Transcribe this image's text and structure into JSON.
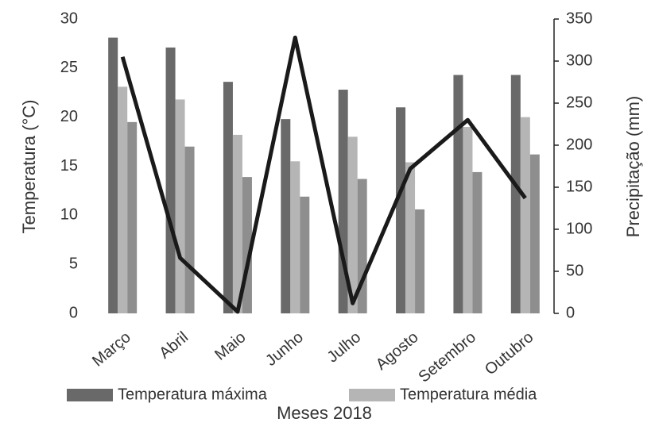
{
  "chart_data": {
    "type": "bar",
    "x_label": "Meses 2018",
    "y_label": "Temperatura (°C)",
    "y2_label": "Precipitação (mm)",
    "categories": [
      "Março",
      "Abril",
      "Maio",
      "Junho",
      "Julho",
      "Agosto",
      "Setembro",
      "Outubro"
    ],
    "series": [
      {
        "name": "Temperatura máxima",
        "color": "#696969",
        "values": [
          28.1,
          27.1,
          23.6,
          19.8,
          22.8,
          21.0,
          24.3,
          24.3
        ]
      },
      {
        "name": "Temperatura média",
        "color": "#b5b5b5",
        "values": [
          23.1,
          21.8,
          18.2,
          15.5,
          18.0,
          15.4,
          19.0,
          20.0
        ]
      },
      {
        "color": "#8e8e8e",
        "values": [
          19.5,
          17.0,
          13.9,
          11.9,
          13.7,
          10.6,
          14.4,
          16.2
        ]
      },
      {
        "type": "line",
        "axis": "y2",
        "color": "#1a1a1a",
        "values": [
          305,
          66,
          2,
          328,
          12,
          172,
          230,
          137
        ]
      }
    ],
    "ylim": [
      0,
      30
    ],
    "yticks": [
      0,
      5,
      10,
      15,
      20,
      25,
      30
    ],
    "y2lim": [
      0,
      350
    ],
    "y2ticks": [
      0,
      50,
      100,
      150,
      200,
      250,
      300,
      350
    ]
  }
}
